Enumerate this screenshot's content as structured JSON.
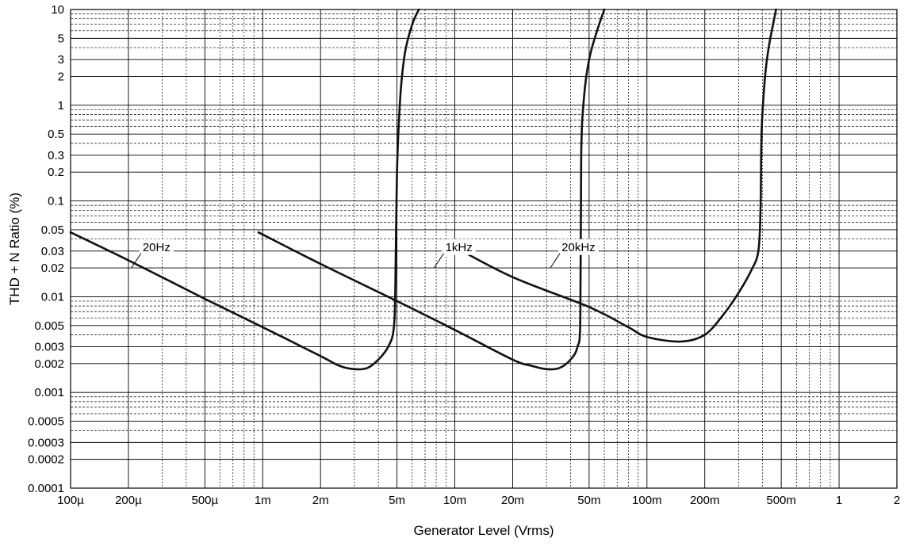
{
  "chart_data": {
    "type": "line",
    "xlabel": "Generator Level (Vrms)",
    "ylabel": "THD + N Ratio (%)",
    "x_scale": "log",
    "y_scale": "log",
    "xlim": [
      0.0001,
      2
    ],
    "ylim": [
      0.0001,
      10
    ],
    "grid": true,
    "x_ticks": [
      {
        "value": 0.0001,
        "label": "100µ"
      },
      {
        "value": 0.0002,
        "label": "200µ"
      },
      {
        "value": 0.0005,
        "label": "500µ"
      },
      {
        "value": 0.001,
        "label": "1m"
      },
      {
        "value": 0.002,
        "label": "2m"
      },
      {
        "value": 0.005,
        "label": "5m"
      },
      {
        "value": 0.01,
        "label": "10m"
      },
      {
        "value": 0.02,
        "label": "20m"
      },
      {
        "value": 0.05,
        "label": "50m"
      },
      {
        "value": 0.1,
        "label": "100m"
      },
      {
        "value": 0.2,
        "label": "200m"
      },
      {
        "value": 0.5,
        "label": "500m"
      },
      {
        "value": 1,
        "label": "1"
      },
      {
        "value": 2,
        "label": "2"
      }
    ],
    "y_ticks": [
      {
        "value": 10,
        "label": "10"
      },
      {
        "value": 5,
        "label": "5"
      },
      {
        "value": 3,
        "label": "3"
      },
      {
        "value": 2,
        "label": "2"
      },
      {
        "value": 1,
        "label": "1"
      },
      {
        "value": 0.5,
        "label": "0.5"
      },
      {
        "value": 0.3,
        "label": "0.3"
      },
      {
        "value": 0.2,
        "label": "0.2"
      },
      {
        "value": 0.1,
        "label": "0.1"
      },
      {
        "value": 0.05,
        "label": "0.05"
      },
      {
        "value": 0.03,
        "label": "0.03"
      },
      {
        "value": 0.02,
        "label": "0.02"
      },
      {
        "value": 0.01,
        "label": "0.01"
      },
      {
        "value": 0.005,
        "label": "0.005"
      },
      {
        "value": 0.003,
        "label": "0.003"
      },
      {
        "value": 0.002,
        "label": "0.002"
      },
      {
        "value": 0.001,
        "label": "0.001"
      },
      {
        "value": 0.0005,
        "label": "0.0005"
      },
      {
        "value": 0.0003,
        "label": "0.0003"
      },
      {
        "value": 0.0002,
        "label": "0.0002"
      },
      {
        "value": 0.0001,
        "label": "0.0001"
      }
    ],
    "series": [
      {
        "name": "20Hz",
        "label_at": {
          "x": 0.00028,
          "y": 0.033
        },
        "points": [
          [
            0.0001,
            0.047
          ],
          [
            0.0002,
            0.024
          ],
          [
            0.0005,
            0.0095
          ],
          [
            0.001,
            0.0048
          ],
          [
            0.002,
            0.0024
          ],
          [
            0.0025,
            0.0019
          ],
          [
            0.003,
            0.00175
          ],
          [
            0.0035,
            0.0018
          ],
          [
            0.004,
            0.0022
          ],
          [
            0.0045,
            0.003
          ],
          [
            0.0048,
            0.0045
          ],
          [
            0.0049,
            0.012
          ],
          [
            0.005,
            0.2
          ],
          [
            0.0052,
            1.2
          ],
          [
            0.0055,
            3.5
          ],
          [
            0.006,
            7
          ],
          [
            0.0065,
            10
          ]
        ]
      },
      {
        "name": "1kHz",
        "label_at": {
          "x": 0.0105,
          "y": 0.033
        },
        "points": [
          [
            0.00095,
            0.047
          ],
          [
            0.002,
            0.022
          ],
          [
            0.005,
            0.009
          ],
          [
            0.01,
            0.0045
          ],
          [
            0.02,
            0.0022
          ],
          [
            0.025,
            0.0019
          ],
          [
            0.03,
            0.00175
          ],
          [
            0.035,
            0.0018
          ],
          [
            0.04,
            0.0022
          ],
          [
            0.0435,
            0.003
          ],
          [
            0.045,
            0.006
          ],
          [
            0.0455,
            0.3
          ],
          [
            0.047,
            1.2
          ],
          [
            0.05,
            3
          ],
          [
            0.055,
            6
          ],
          [
            0.06,
            10
          ]
        ]
      },
      {
        "name": "20kHz",
        "label_at": {
          "x": 0.044,
          "y": 0.033
        },
        "points": [
          [
            0.01,
            0.033
          ],
          [
            0.02,
            0.016
          ],
          [
            0.05,
            0.0078
          ],
          [
            0.08,
            0.0048
          ],
          [
            0.1,
            0.0038
          ],
          [
            0.15,
            0.0034
          ],
          [
            0.2,
            0.004
          ],
          [
            0.25,
            0.0065
          ],
          [
            0.3,
            0.011
          ],
          [
            0.35,
            0.019
          ],
          [
            0.38,
            0.03
          ],
          [
            0.39,
            0.08
          ],
          [
            0.395,
            0.5
          ],
          [
            0.41,
            1.8
          ],
          [
            0.43,
            4
          ],
          [
            0.47,
            10
          ]
        ]
      }
    ]
  }
}
